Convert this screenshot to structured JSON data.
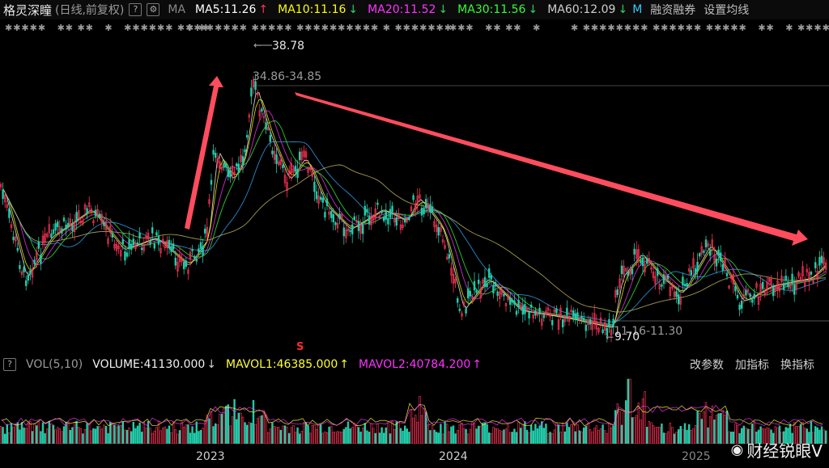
{
  "header": {
    "stock_name": "格灵深瞳",
    "period": "(日线,前复权)",
    "help": "?",
    "gear": "⚙",
    "ma_label": "MA",
    "ma_items": [
      {
        "text": "MA5:11.26",
        "arrow": "↑",
        "color": "#ffffff"
      },
      {
        "text": "MA10:11.16",
        "arrow": "↓",
        "color": "#ffff00"
      },
      {
        "text": "MA20:11.52",
        "arrow": "↓",
        "color": "#ff33ff"
      },
      {
        "text": "MA30:11.56",
        "arrow": "↓",
        "color": "#33ff33"
      },
      {
        "text": "MA60:12.09",
        "arrow": "↓",
        "color": "#cfcfcf"
      }
    ],
    "truncated": "M",
    "margin_trading": "融资融券",
    "settings": "设置均线"
  },
  "chart": {
    "high_label": "38.78",
    "high_range": "34.86-34.85",
    "low_label": "9.70",
    "low_range": "11.16-11.30",
    "marker": "S"
  },
  "volume_bar": {
    "help": "?",
    "indicator": "VOL(5,10)",
    "volume": "VOLUME:41130.000",
    "volume_arrow": "↓",
    "mavol1": "MAVOL1:46385.000",
    "mavol1_arrow": "↑",
    "mavol2": "MAVOL2:40784.200",
    "mavol2_arrow": "↑",
    "btn_params": "改参数",
    "btn_add": "加指标",
    "btn_switch": "换指标"
  },
  "axis": {
    "y2023": "2023",
    "y2024": "2024",
    "y2025": "2025"
  },
  "watermark": {
    "text": "财经锐眼V"
  },
  "colors": {
    "up": "#ff3355",
    "down": "#22ccaa",
    "arrow": "#ff4d5e",
    "ma_long": "#c8c060"
  }
}
